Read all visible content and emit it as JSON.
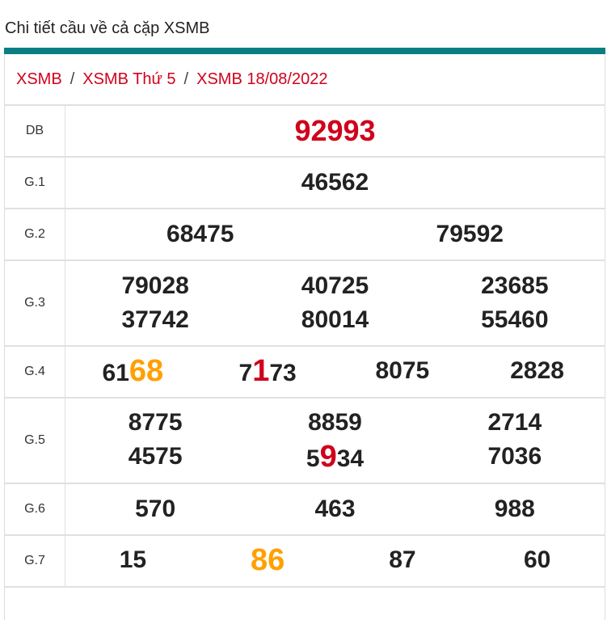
{
  "title": "Chi tiết cầu về cả cặp XSMB",
  "accent_color": "#087f82",
  "breadcrumb": [
    "XSMB",
    "XSMB Thứ 5",
    "XSMB 18/08/2022"
  ],
  "breadcrumb_separator": "/",
  "rows": [
    {
      "label": "DB",
      "cols": 1,
      "numbers": [
        [
          {
            "t": "92993"
          }
        ]
      ]
    },
    {
      "label": "G.1",
      "cols": 1,
      "numbers": [
        [
          {
            "t": "46562"
          }
        ]
      ]
    },
    {
      "label": "G.2",
      "cols": 2,
      "numbers": [
        [
          {
            "t": "68475"
          }
        ],
        [
          {
            "t": "79592"
          }
        ]
      ]
    },
    {
      "label": "G.3",
      "cols": 3,
      "numbers": [
        [
          {
            "t": "79028"
          }
        ],
        [
          {
            "t": "40725"
          }
        ],
        [
          {
            "t": "23685"
          }
        ],
        [
          {
            "t": "37742"
          }
        ],
        [
          {
            "t": "80014"
          }
        ],
        [
          {
            "t": "55460"
          }
        ]
      ]
    },
    {
      "label": "G.4",
      "cols": 4,
      "numbers": [
        [
          {
            "t": "61"
          },
          {
            "t": "68",
            "hl": "orange"
          }
        ],
        [
          {
            "t": "7"
          },
          {
            "t": "1",
            "hl": "red"
          },
          {
            "t": "73"
          }
        ],
        [
          {
            "t": "8075"
          }
        ],
        [
          {
            "t": "2828"
          }
        ]
      ]
    },
    {
      "label": "G.5",
      "cols": 3,
      "numbers": [
        [
          {
            "t": "8775"
          }
        ],
        [
          {
            "t": "8859"
          }
        ],
        [
          {
            "t": "2714"
          }
        ],
        [
          {
            "t": "4575"
          }
        ],
        [
          {
            "t": "5"
          },
          {
            "t": "9",
            "hl": "red"
          },
          {
            "t": "34"
          }
        ],
        [
          {
            "t": "7036"
          }
        ]
      ]
    },
    {
      "label": "G.6",
      "cols": 3,
      "numbers": [
        [
          {
            "t": "570"
          }
        ],
        [
          {
            "t": "463"
          }
        ],
        [
          {
            "t": "988"
          }
        ]
      ]
    },
    {
      "label": "G.7",
      "cols": 4,
      "numbers": [
        [
          {
            "t": "15"
          }
        ],
        [
          {
            "t": "86",
            "hl": "orange"
          }
        ],
        [
          {
            "t": "87"
          }
        ],
        [
          {
            "t": "60"
          }
        ]
      ]
    }
  ],
  "highlight_colors": {
    "orange": "#ffa000",
    "red": "#d0021b"
  }
}
